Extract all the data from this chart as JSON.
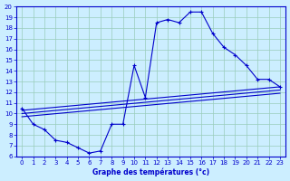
{
  "title": "Graphe des températures (°c)",
  "bg_color": "#cceeff",
  "grid_color": "#99ccbb",
  "line_color": "#0000cc",
  "xlim": [
    -0.5,
    23.5
  ],
  "ylim": [
    6,
    20
  ],
  "xticks": [
    0,
    1,
    2,
    3,
    4,
    5,
    6,
    7,
    8,
    9,
    10,
    11,
    12,
    13,
    14,
    15,
    16,
    17,
    18,
    19,
    20,
    21,
    22,
    23
  ],
  "yticks": [
    6,
    7,
    8,
    9,
    10,
    11,
    12,
    13,
    14,
    15,
    16,
    17,
    18,
    19,
    20
  ],
  "hours": [
    0,
    1,
    2,
    3,
    4,
    5,
    6,
    7,
    8,
    9,
    10,
    11,
    12,
    13,
    14,
    15,
    16,
    17,
    18,
    19,
    20,
    21,
    22,
    23
  ],
  "temp_curve": [
    10.5,
    9.0,
    8.5,
    7.5,
    7.3,
    6.8,
    6.3,
    6.5,
    9.0,
    9.0,
    14.5,
    11.5,
    18.5,
    18.8,
    18.5,
    19.5,
    19.5,
    17.5,
    16.2,
    15.5,
    14.5,
    13.2,
    13.2,
    12.5
  ],
  "line1_x": [
    0,
    23
  ],
  "line1_y": [
    10.3,
    12.5
  ],
  "line2_x": [
    0,
    23
  ],
  "line2_y": [
    10.0,
    12.2
  ],
  "line3_x": [
    0,
    23
  ],
  "line3_y": [
    9.7,
    11.9
  ]
}
